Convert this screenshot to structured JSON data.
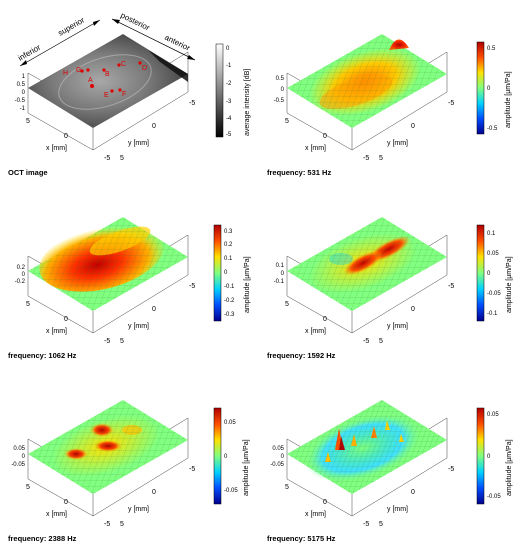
{
  "axes": {
    "x_label": "x [mm]",
    "y_label": "y [mm]",
    "x_ticks": [
      "5",
      "0",
      "-5"
    ],
    "y_ticks": [
      "-5",
      "0",
      "5"
    ]
  },
  "colormap": [
    "#00008f",
    "#0050ff",
    "#00d0ff",
    "#80ff80",
    "#ffe000",
    "#ff5000",
    "#b00000"
  ],
  "grayscale": [
    "#000000",
    "#ffffff"
  ],
  "panels": [
    {
      "id": "oct",
      "caption": "OCT image",
      "z_ticks": [
        "1",
        "0.5",
        "0",
        "-0.5",
        "-1"
      ],
      "colorbar_label": "average intensity [dB]",
      "colorbar_ticks": [
        "0",
        "-1",
        "-2",
        "-3",
        "-4",
        "-5"
      ],
      "directions": [
        "inferior",
        "superior",
        "posterior",
        "anterior"
      ],
      "points": [
        "A",
        "B",
        "C",
        "D",
        "E",
        "F",
        "G",
        "H"
      ]
    },
    {
      "id": "f531",
      "caption": "frequency: 531 Hz",
      "z_ticks": [
        "0.5",
        "0",
        "-0.5"
      ],
      "colorbar_label": "amplitude [µm/Pa]",
      "colorbar_ticks": [
        "0.5",
        "0",
        "-0.5"
      ]
    },
    {
      "id": "f1062",
      "caption": "frequency: 1062 Hz",
      "z_ticks": [
        "0.2",
        "0",
        "-0.2"
      ],
      "colorbar_label": "amplitude [µm/Pa]",
      "colorbar_ticks": [
        "0.3",
        "0.2",
        "0.1",
        "0",
        "-0.1",
        "-0.2",
        "-0.3"
      ]
    },
    {
      "id": "f1592",
      "caption": "frequency: 1592 Hz",
      "z_ticks": [
        "0.1",
        "0",
        "-0.1"
      ],
      "colorbar_label": "amplitude [µm/Pa]",
      "colorbar_ticks": [
        "0.1",
        "0.05",
        "0",
        "-0.05",
        "-0.1"
      ]
    },
    {
      "id": "f2388",
      "caption": "frequency: 2388 Hz",
      "z_ticks": [
        "0.05",
        "0",
        "-0.05"
      ],
      "colorbar_label": "amplitude [µm/Pa]",
      "colorbar_ticks": [
        "0.05",
        "0",
        "-0.05"
      ]
    },
    {
      "id": "f5175",
      "caption": "frequency: 5175 Hz",
      "z_ticks": [
        "0.05",
        "0",
        "-0.05"
      ],
      "colorbar_label": "amplitude [µm/Pa]",
      "colorbar_ticks": [
        "0.05",
        "0",
        "-0.05"
      ]
    }
  ]
}
